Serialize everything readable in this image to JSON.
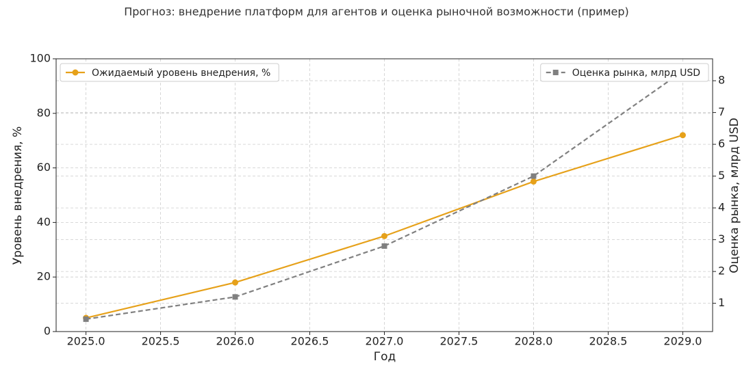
{
  "chart_data": {
    "type": "line",
    "title": "Прогноз: внедрение платформ для агентов и оценка рыночной возможности (пример)",
    "xlabel": "Год",
    "ylabel": "Уровень внедрения, %",
    "y2label": "Оценка рынка, млрд USD",
    "x": [
      2025,
      2026,
      2027,
      2028,
      2029
    ],
    "series": [
      {
        "name": "Ожидаемый уровень внедрения, %",
        "color": "#e6a11a",
        "marker": "circle",
        "linestyle": "solid",
        "axis": "y",
        "values": [
          5,
          18,
          35,
          55,
          72
        ]
      },
      {
        "name": "Оценка рынка, млрд USD",
        "color": "#808080",
        "marker": "square",
        "linestyle": "dashed",
        "axis": "y2",
        "values": [
          0.5,
          1.2,
          2.8,
          5.0,
          8.3
        ]
      }
    ],
    "xlim": [
      2024.8,
      2029.2
    ],
    "xticks": [
      {
        "value": 2025,
        "label": "2025.0"
      },
      {
        "value": 2025.5,
        "label": "2025.5"
      },
      {
        "value": 2026,
        "label": "2026.0"
      },
      {
        "value": 2026.5,
        "label": "2026.5"
      },
      {
        "value": 2027,
        "label": "2027.0"
      },
      {
        "value": 2027.5,
        "label": "2027.5"
      },
      {
        "value": 2028,
        "label": "2028.0"
      },
      {
        "value": 2028.5,
        "label": "2028.5"
      },
      {
        "value": 2029,
        "label": "2029.0"
      }
    ],
    "ylim": [
      0,
      100
    ],
    "yticks": [
      0,
      20,
      40,
      60,
      80,
      100
    ],
    "y2lim": [
      0.11,
      8.69
    ],
    "y2ticks": [
      1,
      2,
      3,
      4,
      5,
      6,
      7,
      8
    ],
    "grid": true,
    "legend": "upper left",
    "legend2": "upper right"
  }
}
